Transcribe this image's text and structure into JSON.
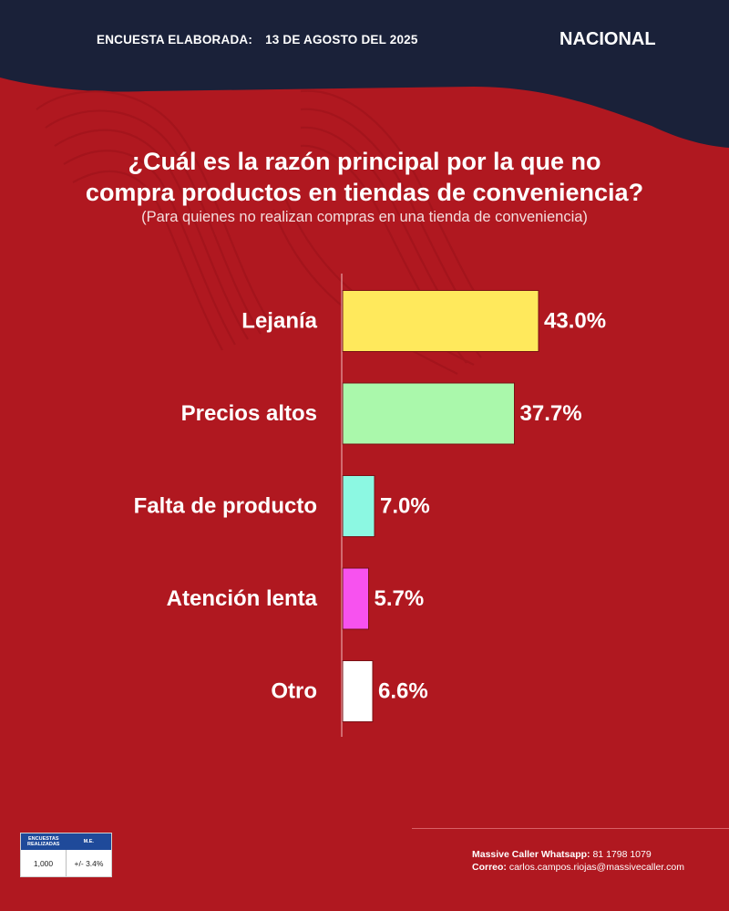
{
  "header": {
    "survey_label": "ENCUESTA ELABORADA:",
    "survey_date": "13 DE AGOSTO DEL 2025",
    "scope": "NACIONAL"
  },
  "colors": {
    "background": "#b01820",
    "header_band": "#1a2139",
    "axis_line": "#e8a0a4"
  },
  "chart_data": {
    "type": "bar",
    "orientation": "horizontal",
    "title": "¿Cuál es la razón principal por la que no compra productos en tiendas de conveniencia?",
    "title_lines": [
      "¿Cuál es la razón principal por la que no",
      "compra productos en tiendas de conveniencia?"
    ],
    "subtitle": "(Para quienes no realizan compras en una tienda de conveniencia)",
    "categories": [
      "Lejanía",
      "Precios altos",
      "Falta de producto",
      "Atención lenta",
      "Otro"
    ],
    "values": [
      43.0,
      37.7,
      7.0,
      5.7,
      6.6
    ],
    "value_labels": [
      "43.0%",
      "37.7%",
      "7.0%",
      "5.7%",
      "6.6%"
    ],
    "bar_colors": [
      "#ffe95c",
      "#aaf8ab",
      "#8cf8e2",
      "#f752ef",
      "#ffffff"
    ],
    "unit": "%",
    "xlim": [
      0,
      100
    ],
    "grid": false,
    "legend": "none"
  },
  "footer": {
    "table": {
      "col1_header": "ENCUESTAS REALIZADAS",
      "col2_header": "M.E.",
      "col1_value": "1,000",
      "col2_value": "+/- 3.4%"
    },
    "whatsapp_label": "Massive Caller Whatsapp:",
    "whatsapp_value": "81 1798 1079",
    "email_label": "Correo:",
    "email_value": "carlos.campos.riojas@massivecaller.com"
  }
}
